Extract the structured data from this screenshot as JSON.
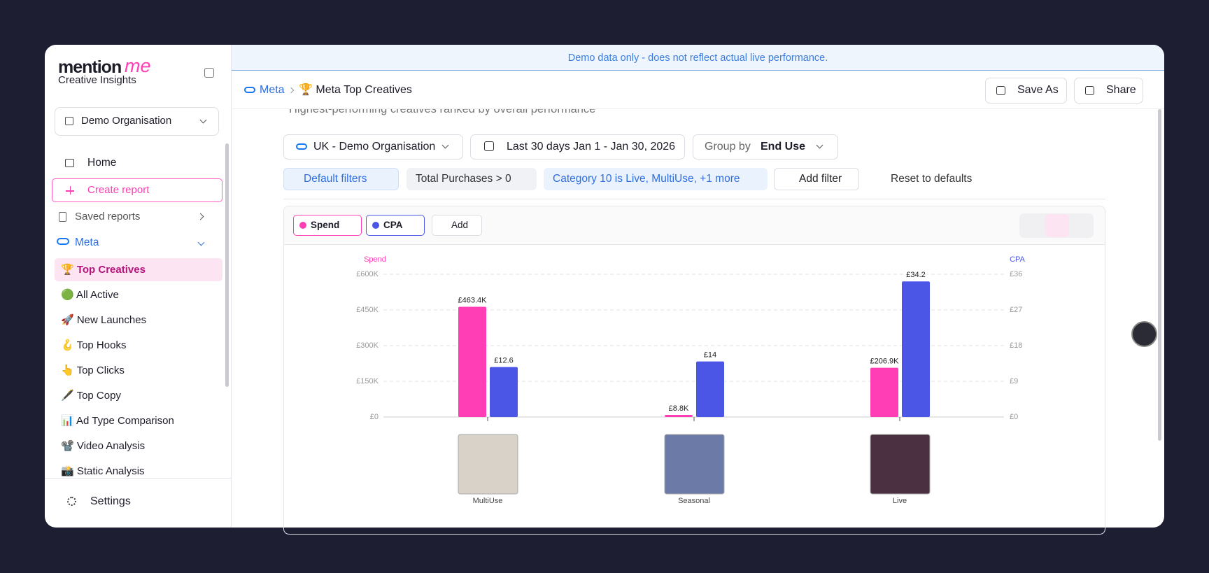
{
  "banner": "Demo data only - does not reflect actual live performance.",
  "sidebar": {
    "brand": "mention",
    "brand_accent": "me",
    "brand_sub": "Creative Insights",
    "org": "Demo Organisation",
    "nav": [
      "Home",
      "Create report",
      "Saved reports",
      "Meta"
    ],
    "meta_items": [
      "🏆 Top Creatives",
      "🟢 All Active",
      "🚀 New Launches",
      "🪝 Top Hooks",
      "👆 Top Clicks",
      "🖋️ Top Copy",
      "📊 Ad Type Comparison",
      "📽️ Video Analysis",
      "📸 Static Analysis"
    ],
    "settings": "Settings"
  },
  "header": {
    "breadcrumb": [
      "Meta",
      "🏆 Meta Top Creatives"
    ],
    "buttons": [
      "Save As",
      "Share"
    ]
  },
  "subtitle": "Highest-performing creatives ranked by overall performance",
  "controls": {
    "account": "UK - Demo Organisation",
    "date": "Last 30 days Jan 1 - Jan 30, 2026",
    "group_label": "Group by",
    "group_value": "End Use"
  },
  "filters": [
    "Default filters",
    "Total Purchases > 0",
    "Category 10 is Live, MultiUse, +1 more",
    "Add filter",
    "Reset to defaults"
  ],
  "metric_chips": [
    "Spend",
    "CPA",
    "Add"
  ],
  "chart_data": {
    "type": "bar",
    "categories": [
      "MultiUse",
      "Seasonal",
      "Live"
    ],
    "y_label": "Spend",
    "y2_label": "CPA",
    "ylim": [
      0,
      600000
    ],
    "yticks": [
      {
        "value": 0,
        "label": "£0"
      },
      {
        "value": 150000,
        "label": "£150K"
      },
      {
        "value": 300000,
        "label": "£300K"
      },
      {
        "value": 450000,
        "label": "£450K"
      },
      {
        "value": 600000,
        "label": "£600K"
      }
    ],
    "y2lim": [
      0,
      36
    ],
    "y2ticks": [
      {
        "value": 0,
        "label": "£0"
      },
      {
        "value": 9,
        "label": "£9"
      },
      {
        "value": 18,
        "label": "£18"
      },
      {
        "value": 27,
        "label": "£27"
      },
      {
        "value": 36,
        "label": "£36"
      }
    ],
    "grid": true,
    "series": [
      {
        "name": "Spend",
        "color": "#ff3db4",
        "values": [
          463400,
          8800,
          206900
        ],
        "value_labels": [
          "£463.4K",
          "£8.8K",
          "£206.9K"
        ]
      },
      {
        "name": "CPA",
        "color": "#4b55e6",
        "axis": "y2",
        "values": [
          12.6,
          14,
          34.2
        ],
        "value_labels": [
          "£12.6",
          "£14",
          "£34.2"
        ]
      }
    ]
  }
}
